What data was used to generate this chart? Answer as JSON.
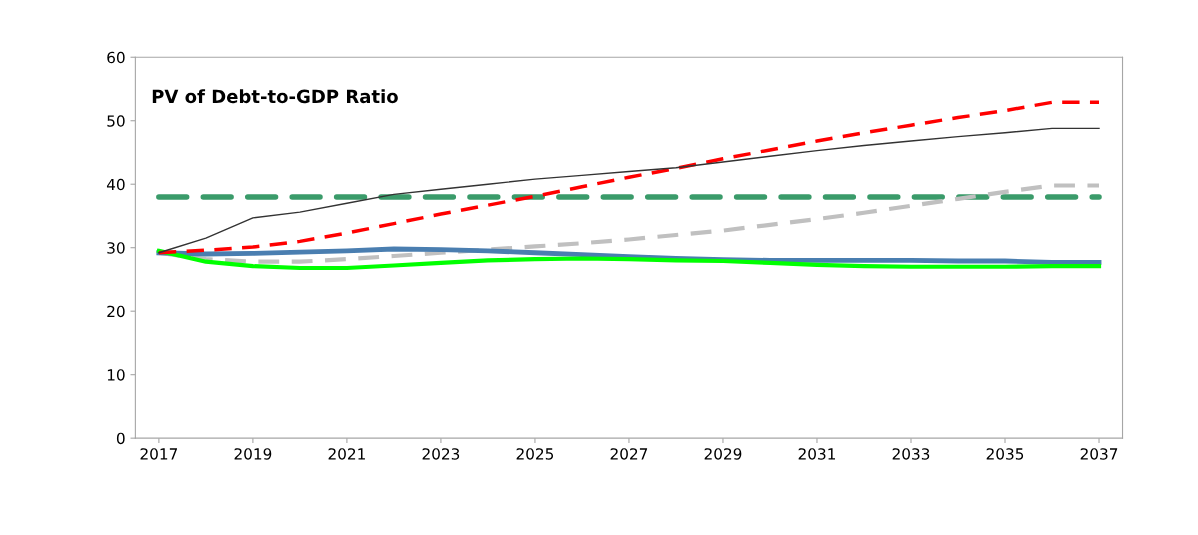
{
  "chart_data": {
    "type": "line",
    "title": "PV of Debt-to-GDP Ratio",
    "x": [
      2017,
      2018,
      2019,
      2020,
      2021,
      2022,
      2023,
      2024,
      2025,
      2026,
      2027,
      2028,
      2029,
      2030,
      2031,
      2032,
      2033,
      2034,
      2035,
      2036,
      2037
    ],
    "series": [
      {
        "color": "#3a9b6a",
        "line_style": "dashed",
        "values": [
          38,
          38,
          38,
          38,
          38,
          38,
          38,
          38,
          38,
          38,
          38,
          38,
          38,
          38,
          38,
          38,
          38,
          38,
          38,
          38,
          38
        ]
      },
      {
        "color": "#c0c0c0",
        "line_style": "dashed",
        "values": [
          29.2,
          28.2,
          27.8,
          27.8,
          28.2,
          28.7,
          29.2,
          29.7,
          30.2,
          30.7,
          31.3,
          32.0,
          32.7,
          33.6,
          34.5,
          35.5,
          36.6,
          37.7,
          38.8,
          39.8,
          39.8
        ]
      },
      {
        "color": "#4a7eb0",
        "line_style": "solid",
        "values": [
          29.2,
          29.0,
          29.1,
          29.3,
          29.5,
          29.8,
          29.7,
          29.5,
          29.2,
          28.9,
          28.6,
          28.3,
          28.1,
          28.0,
          28.0,
          28.0,
          28.0,
          27.9,
          27.9,
          27.7,
          27.7
        ]
      },
      {
        "color": "#00ff00",
        "line_style": "solid",
        "values": [
          29.5,
          27.8,
          27.1,
          26.8,
          26.8,
          27.2,
          27.6,
          28.0,
          28.2,
          28.3,
          28.2,
          28.0,
          27.9,
          27.6,
          27.3,
          27.1,
          27.0,
          27.0,
          27.0,
          27.1,
          27.1
        ]
      },
      {
        "color": "#ff0000",
        "line_style": "dashed",
        "values": [
          29.2,
          29.6,
          30.1,
          31.0,
          32.3,
          33.8,
          35.3,
          36.7,
          38.1,
          39.6,
          41.1,
          42.5,
          44.0,
          45.4,
          46.8,
          48.1,
          49.3,
          50.5,
          51.6,
          52.9,
          52.9
        ]
      },
      {
        "color": "#333333",
        "line_style": "solid",
        "values": [
          29.2,
          31.5,
          34.7,
          35.6,
          37.0,
          38.4,
          39.2,
          40.0,
          40.8,
          41.4,
          42.0,
          42.6,
          43.5,
          44.4,
          45.3,
          46.1,
          46.8,
          47.5,
          48.1,
          48.8,
          48.8
        ]
      }
    ],
    "xlim": [
      2016.5,
      2037.5
    ],
    "xticks": [
      2017,
      2019,
      2021,
      2023,
      2025,
      2027,
      2029,
      2031,
      2033,
      2035,
      2037
    ],
    "ylim": [
      0,
      60
    ],
    "yticks": [
      0,
      10,
      20,
      30,
      40,
      50,
      60
    ],
    "grid": false,
    "legend": false
  }
}
